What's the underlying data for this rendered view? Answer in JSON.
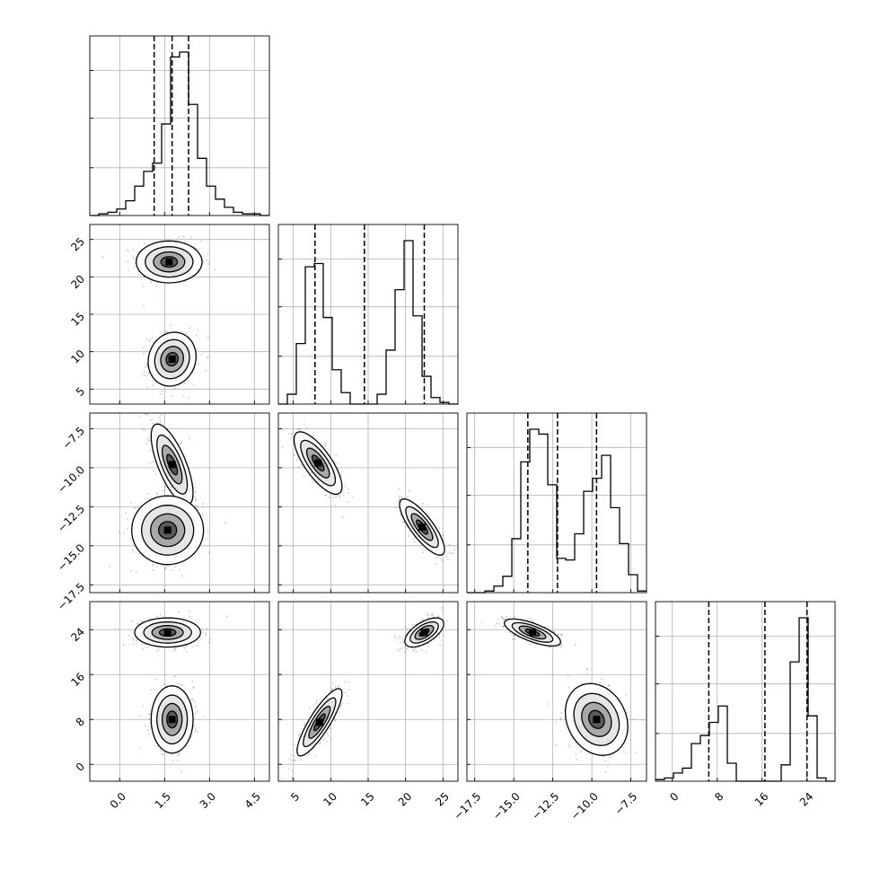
{
  "chart_data": {
    "type": "corner",
    "grid": true,
    "parameters": [
      {
        "range": [
          -1.0,
          5.0
        ],
        "ticks": [
          0.0,
          1.5,
          3.0,
          4.5
        ],
        "tick_labels": [
          "0.0",
          "1.5",
          "3.0",
          "4.5"
        ],
        "quantiles": [
          1.15,
          1.75,
          2.3
        ],
        "hist_edges_start": -1.0,
        "hist_bin_width": 0.3,
        "hist_counts": [
          0,
          1,
          2,
          4,
          9,
          18,
          27,
          32,
          56,
          97,
          100,
          68,
          35,
          18,
          10,
          5,
          2,
          1,
          1,
          0
        ]
      },
      {
        "range": [
          3.0,
          27.0
        ],
        "ticks": [
          5,
          10,
          15,
          20,
          25
        ],
        "tick_labels": [
          "5",
          "10",
          "15",
          "20",
          "25"
        ],
        "quantiles": [
          7.9,
          14.5,
          22.5
        ],
        "hist_edges_start": 3.0,
        "hist_bin_width": 1.2,
        "hist_counts": [
          0,
          6,
          37,
          84,
          86,
          53,
          21,
          7,
          0,
          0,
          0,
          6,
          33,
          70,
          100,
          54,
          17,
          4,
          1,
          0
        ]
      },
      {
        "range": [
          -18.0,
          -6.5
        ],
        "ticks": [
          -17.5,
          -15.0,
          -12.5,
          -10.0,
          -7.5
        ],
        "tick_labels": [
          "−17.5",
          "−15.0",
          "−12.5",
          "−10.0",
          "−7.5"
        ],
        "quantiles": [
          -14.1,
          -12.2,
          -9.7
        ],
        "hist_edges_start": -18.0,
        "hist_bin_width": 0.575,
        "hist_counts": [
          0,
          0,
          1,
          4,
          10,
          33,
          80,
          100,
          97,
          66,
          21,
          20,
          36,
          62,
          70,
          84,
          52,
          30,
          11,
          1
        ]
      },
      {
        "range": [
          -3.0,
          29.0
        ],
        "ticks": [
          0,
          8,
          16,
          24
        ],
        "tick_labels": [
          "0",
          "8",
          "16",
          "24"
        ],
        "quantiles": [
          6.5,
          16.5,
          24.0
        ],
        "hist_edges_start": -3.0,
        "hist_bin_width": 1.6,
        "hist_counts": [
          1,
          2,
          5,
          8,
          23,
          28,
          36,
          46,
          11,
          0,
          0,
          0,
          0,
          0,
          10,
          73,
          100,
          40,
          2,
          0
        ]
      }
    ],
    "scatter_pairs": [
      {
        "row": 1,
        "col": 0,
        "modes": [
          {
            "cx": 1.65,
            "cy": 22.0,
            "sx": 0.55,
            "sy": 1.4,
            "rho": 0.0,
            "n": 350
          },
          {
            "cx": 1.75,
            "cy": 9.0,
            "sx": 0.4,
            "sy": 1.8,
            "rho": 0.1,
            "n": 350
          }
        ]
      },
      {
        "row": 2,
        "col": 0,
        "modes": [
          {
            "cx": 1.75,
            "cy": -9.8,
            "sx": 0.35,
            "sy": 1.3,
            "rho": -0.7,
            "n": 350
          },
          {
            "cx": 1.6,
            "cy": -14.0,
            "sx": 0.6,
            "sy": 1.1,
            "rho": 0.0,
            "n": 350
          }
        ]
      },
      {
        "row": 2,
        "col": 1,
        "modes": [
          {
            "cx": 8.3,
            "cy": -9.7,
            "sx": 1.6,
            "sy": 1.0,
            "rho": -0.75,
            "n": 350
          },
          {
            "cx": 22.2,
            "cy": -13.8,
            "sx": 1.5,
            "sy": 0.9,
            "rho": -0.8,
            "n": 350
          }
        ]
      },
      {
        "row": 3,
        "col": 0,
        "modes": [
          {
            "cx": 1.6,
            "cy": 23.5,
            "sx": 0.55,
            "sy": 1.3,
            "rho": 0.0,
            "n": 350
          },
          {
            "cx": 1.75,
            "cy": 8.0,
            "sx": 0.35,
            "sy": 3.0,
            "rho": 0.0,
            "n": 350
          }
        ]
      },
      {
        "row": 3,
        "col": 1,
        "modes": [
          {
            "cx": 22.5,
            "cy": 23.5,
            "sx": 1.3,
            "sy": 1.3,
            "rho": 0.6,
            "n": 350
          },
          {
            "cx": 8.5,
            "cy": 7.5,
            "sx": 1.5,
            "sy": 3.0,
            "rho": 0.85,
            "n": 350
          }
        ]
      },
      {
        "row": 3,
        "col": 2,
        "modes": [
          {
            "cx": -13.8,
            "cy": 23.5,
            "sx": 0.9,
            "sy": 1.2,
            "rho": -0.7,
            "n": 350
          },
          {
            "cx": -9.7,
            "cy": 8.0,
            "sx": 1.0,
            "sy": 3.2,
            "rho": -0.2,
            "n": 350
          }
        ]
      }
    ]
  }
}
